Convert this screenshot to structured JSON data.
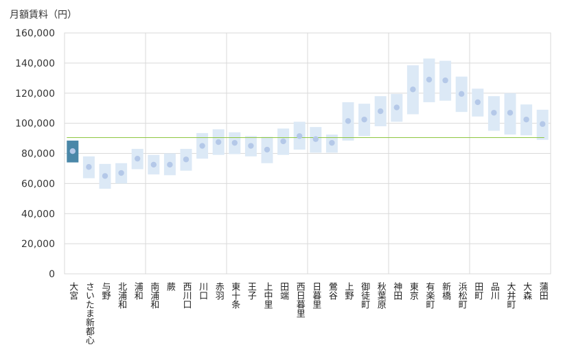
{
  "chart_data": {
    "type": "floating-range",
    "ylabel": "月額賃料（円）",
    "ylim": [
      0,
      160000
    ],
    "yticks": [
      "0",
      "20,000",
      "40,000",
      "60,000",
      "80,000",
      "100,000",
      "120,000",
      "140,000",
      "160,000"
    ],
    "reference_line": 90500,
    "highlight_color": "#4a87a8",
    "range_color": "#dce9f6",
    "point_color": "#b4c8e8",
    "line_color": "#8dc63f",
    "categories": [
      "大宮",
      "さいたま新都心",
      "与野",
      "北浦和",
      "浦和",
      "南浦和",
      "蕨",
      "西川口",
      "川口",
      "赤羽",
      "東十条",
      "王子",
      "上中里",
      "田端",
      "西日暮里",
      "日暮里",
      "鶯谷",
      "上野",
      "御徒町",
      "秋葉原",
      "神田",
      "東京",
      "有楽町",
      "新橋",
      "浜松町",
      "田町",
      "品川",
      "大井町",
      "大森",
      "蒲田"
    ],
    "values": [
      81500,
      71000,
      65000,
      67000,
      76500,
      72500,
      72500,
      76000,
      85000,
      87500,
      87000,
      85000,
      82500,
      88000,
      91500,
      89500,
      87000,
      101500,
      102500,
      108000,
      110500,
      122500,
      129000,
      128500,
      119500,
      114000,
      107000,
      107000,
      102500,
      99500
    ],
    "ranges": [
      [
        74000,
        88500
      ],
      [
        63500,
        78000
      ],
      [
        56500,
        73000
      ],
      [
        60000,
        73500
      ],
      [
        69500,
        83000
      ],
      [
        66000,
        79000
      ],
      [
        65500,
        80000
      ],
      [
        68500,
        83000
      ],
      [
        76500,
        93500
      ],
      [
        79000,
        96000
      ],
      [
        79500,
        94000
      ],
      [
        78000,
        91500
      ],
      [
        73500,
        91000
      ],
      [
        79000,
        96500
      ],
      [
        82500,
        101000
      ],
      [
        80500,
        97500
      ],
      [
        80500,
        92500
      ],
      [
        88500,
        114000
      ],
      [
        91500,
        113000
      ],
      [
        98000,
        118000
      ],
      [
        101000,
        119500
      ],
      [
        106000,
        138500
      ],
      [
        114000,
        143000
      ],
      [
        115000,
        141500
      ],
      [
        107500,
        131000
      ],
      [
        104500,
        123000
      ],
      [
        95000,
        118000
      ],
      [
        92500,
        120000
      ],
      [
        92000,
        112500
      ],
      [
        89000,
        109000
      ]
    ],
    "separators_after": [
      4,
      9,
      14,
      19,
      24
    ]
  }
}
